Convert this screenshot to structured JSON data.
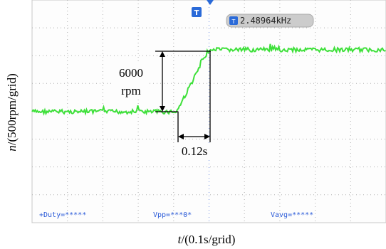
{
  "scope": {
    "frequency_readout": "2.48964kHz",
    "trigger_marker": "T",
    "readout_icon": "T",
    "measurements": [
      "+Duty=*****",
      "Vpp=***0*",
      "Vavg=*****"
    ]
  },
  "annotations": {
    "rise_amount": "6000",
    "rise_unit": "rpm",
    "rise_time": "0.12s"
  },
  "axes": {
    "y_label": {
      "symbol": "n",
      "unit": "/(500rpm/grid)"
    },
    "x_label": {
      "symbol": "t",
      "unit": "/(0.1s/grid)"
    }
  }
}
